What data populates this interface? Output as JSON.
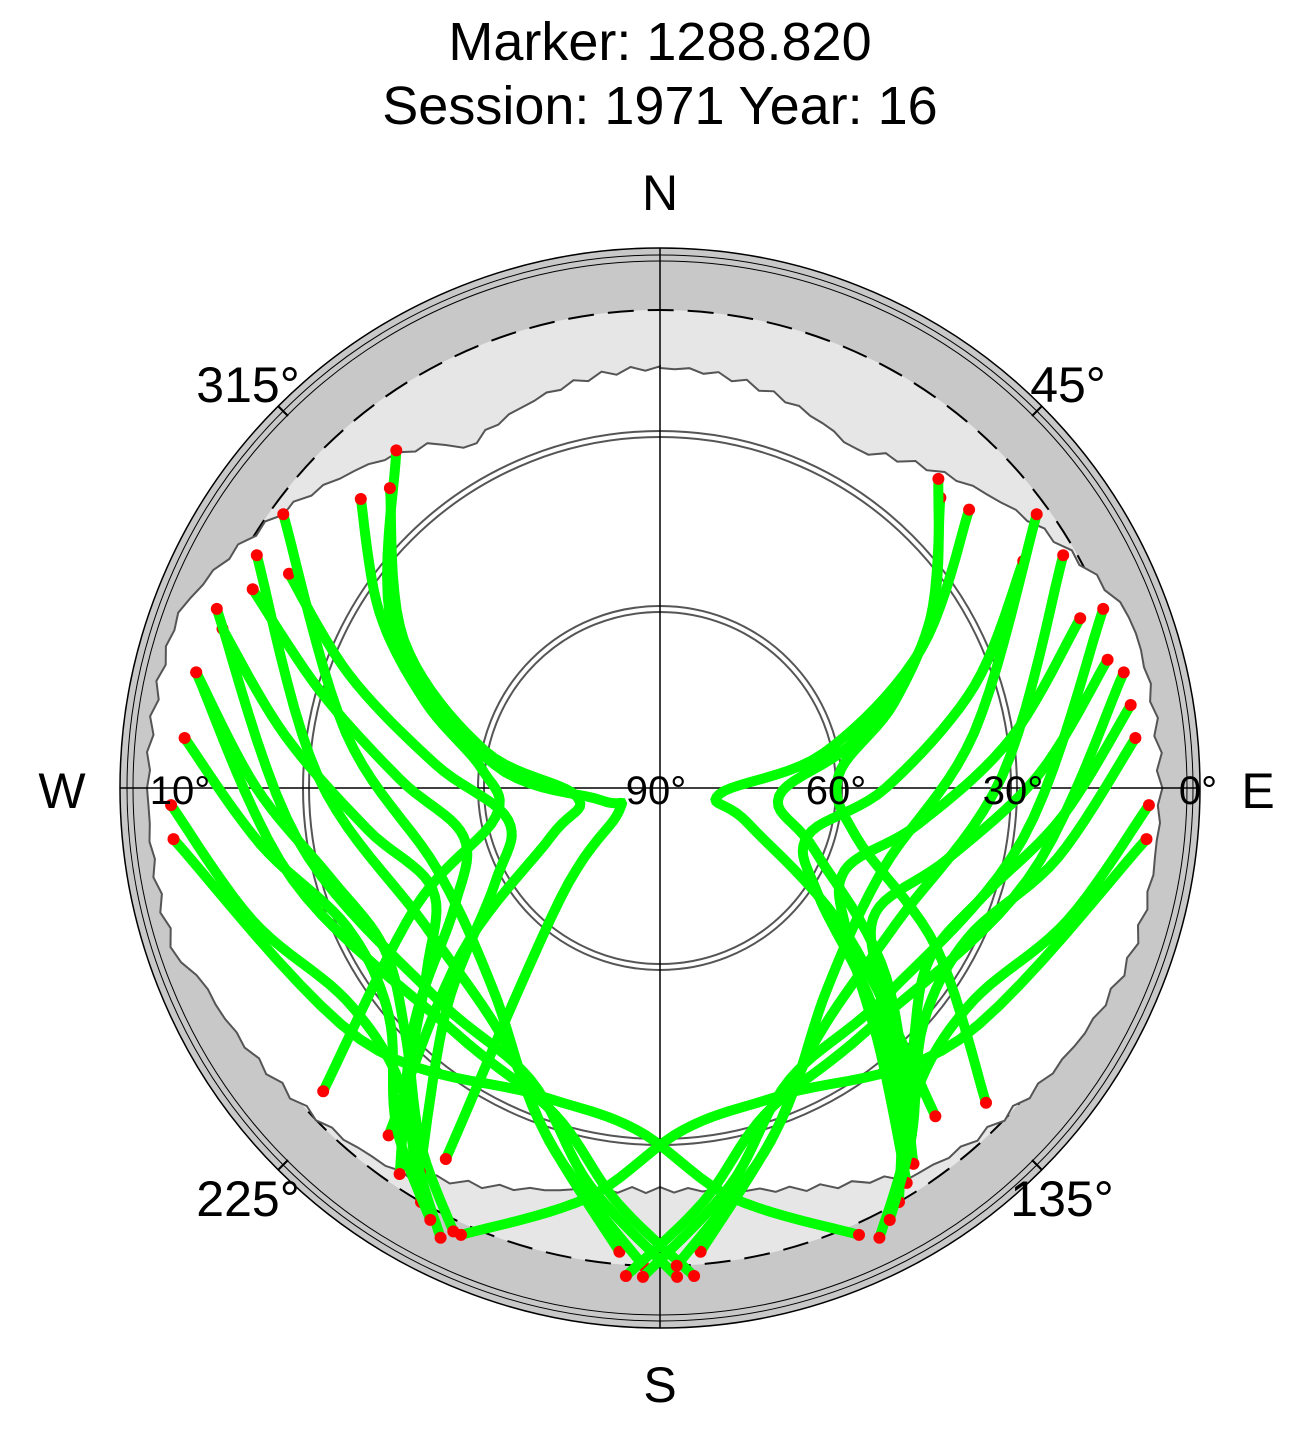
{
  "chart_data": {
    "type": "polar-skyplot",
    "title": "Marker: 1288.820",
    "subtitle": "Session: 1971 Year: 16",
    "cardinals": {
      "n": "N",
      "e": "E",
      "s": "S",
      "w": "W"
    },
    "azimuth_labels": {
      "az315": "315°",
      "az45": "45°",
      "az225": "225°",
      "az135": "135°"
    },
    "elevation_labels": {
      "el90": "90°",
      "el60": "60°",
      "el30": "30°",
      "el10": "10°",
      "el0": "0°"
    },
    "colors": {
      "tracked": "#00ff00",
      "low_signal": "#ff0000",
      "outer_ring": "#c8c8c8",
      "horizon_mask": "#e6e6e6"
    },
    "tracks": [
      {
        "az": [
          322,
          300,
          278,
          258,
          240,
          222,
          210
        ],
        "el": [
          18,
          38,
          62,
          80,
          82,
          65,
          18
        ]
      },
      {
        "az": [
          318,
          300,
          282,
          264,
          246,
          230,
          218
        ],
        "el": [
          22,
          40,
          60,
          76,
          70,
          46,
          16
        ]
      },
      {
        "az": [
          314,
          302,
          290,
          276,
          260,
          244,
          228
        ],
        "el": [
          20,
          34,
          48,
          60,
          62,
          44,
          14
        ]
      },
      {
        "az": [
          284,
          270,
          255,
          240,
          226,
          214,
          205
        ],
        "el": [
          10,
          22,
          32,
          36,
          30,
          18,
          8
        ]
      },
      {
        "az": [
          290,
          278,
          262,
          246,
          232,
          220,
          210
        ],
        "el": [
          12,
          26,
          40,
          48,
          40,
          24,
          10
        ]
      },
      {
        "az": [
          296,
          286,
          272,
          256,
          240,
          226,
          214
        ],
        "el": [
          14,
          30,
          46,
          56,
          50,
          32,
          12
        ]
      },
      {
        "az": [
          300,
          290,
          276,
          258,
          240,
          224,
          212
        ],
        "el": [
          18,
          34,
          52,
          64,
          58,
          38,
          14
        ]
      },
      {
        "az": [
          268,
          252,
          236,
          222,
          212,
          206
        ],
        "el": [
          8,
          18,
          26,
          24,
          14,
          6
        ]
      },
      {
        "az": [
          276,
          262,
          246,
          230,
          218,
          208
        ],
        "el": [
          10,
          22,
          32,
          30,
          18,
          8
        ]
      },
      {
        "az": [
          306,
          280,
          250,
          220,
          200,
          185
        ],
        "el": [
          12,
          36,
          50,
          46,
          30,
          12
        ]
      },
      {
        "az": [
          300,
          272,
          240,
          212,
          196,
          182
        ],
        "el": [
          12,
          32,
          44,
          40,
          26,
          10
        ]
      },
      {
        "az": [
          292,
          262,
          228,
          204,
          190,
          178
        ],
        "el": [
          10,
          28,
          38,
          36,
          22,
          8
        ]
      },
      {
        "az": [
          284,
          256,
          220,
          198,
          186,
          176
        ],
        "el": [
          10,
          26,
          36,
          32,
          20,
          8
        ]
      },
      {
        "az": [
          48,
          62,
          78,
          96,
          112,
          128,
          140
        ],
        "el": [
          20,
          40,
          62,
          80,
          74,
          50,
          18
        ]
      },
      {
        "az": [
          44,
          60,
          76,
          94,
          112,
          130,
          146
        ],
        "el": [
          22,
          38,
          56,
          70,
          62,
          40,
          14
        ]
      },
      {
        "az": [
          42,
          56,
          70,
          86,
          104,
          120,
          134
        ],
        "el": [
          20,
          34,
          48,
          60,
          56,
          36,
          14
        ]
      },
      {
        "az": [
          80,
          94,
          108,
          122,
          134,
          144,
          152
        ],
        "el": [
          10,
          22,
          32,
          36,
          30,
          18,
          8
        ]
      },
      {
        "az": [
          74,
          88,
          104,
          120,
          132,
          142,
          150
        ],
        "el": [
          12,
          26,
          40,
          48,
          40,
          24,
          10
        ]
      },
      {
        "az": [
          68,
          82,
          98,
          114,
          128,
          140,
          148
        ],
        "el": [
          14,
          30,
          46,
          56,
          50,
          32,
          12
        ]
      },
      {
        "az": [
          58,
          72,
          90,
          108,
          124,
          136,
          146
        ],
        "el": [
          18,
          34,
          52,
          64,
          58,
          38,
          14
        ]
      },
      {
        "az": [
          92,
          108,
          124,
          138,
          148,
          154
        ],
        "el": [
          8,
          18,
          26,
          24,
          14,
          6
        ]
      },
      {
        "az": [
          84,
          100,
          116,
          132,
          144,
          152
        ],
        "el": [
          10,
          22,
          32,
          30,
          18,
          8
        ]
      },
      {
        "az": [
          54,
          80,
          110,
          140,
          160,
          175
        ],
        "el": [
          12,
          36,
          50,
          46,
          30,
          12
        ]
      },
      {
        "az": [
          60,
          88,
          120,
          148,
          164,
          178
        ],
        "el": [
          12,
          32,
          44,
          40,
          26,
          10
        ]
      },
      {
        "az": [
          68,
          98,
          132,
          156,
          170,
          182
        ],
        "el": [
          10,
          28,
          38,
          36,
          22,
          8
        ]
      },
      {
        "az": [
          76,
          104,
          140,
          162,
          174,
          184
        ],
        "el": [
          10,
          26,
          36,
          32,
          20,
          8
        ]
      },
      {
        "az": [
          96,
          130,
          158,
          176,
          190,
          204
        ],
        "el": [
          8,
          24,
          34,
          32,
          20,
          8
        ]
      },
      {
        "az": [
          264,
          230,
          202,
          184,
          170,
          156
        ],
        "el": [
          8,
          24,
          34,
          32,
          20,
          8
        ]
      }
    ]
  }
}
